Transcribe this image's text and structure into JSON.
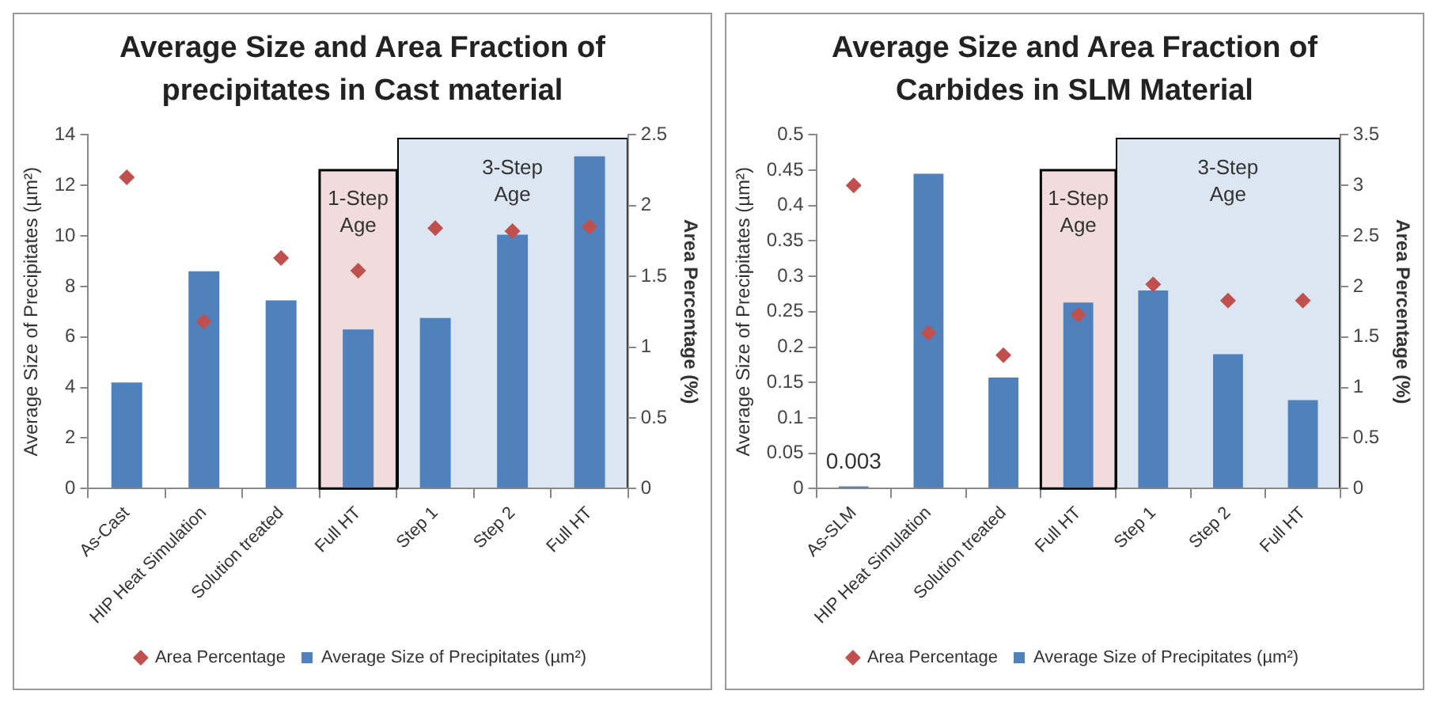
{
  "chart_data": [
    {
      "type": "bar",
      "title": "Average Size and Area Fraction of precipitates in Cast material",
      "ylabel": "Average Size of Precipitates (µm²)",
      "y2label": "Area Percentage (%)",
      "categories": [
        "As-Cast",
        "HIP Heat Simulation",
        "Solution treated",
        "Full HT",
        "Step 1",
        "Step 2",
        "Full HT"
      ],
      "series": [
        {
          "name": "Average Size of Precipitates (µm²)",
          "type": "bar",
          "color": "#4f81bd",
          "values": [
            4.2,
            8.6,
            7.45,
            6.3,
            6.75,
            10.05,
            13.15
          ]
        },
        {
          "name": "Area Percentage",
          "type": "scatter",
          "axis": "y2",
          "marker": "diamond",
          "color": "#c0504d",
          "values": [
            2.2,
            1.18,
            1.63,
            1.54,
            1.84,
            1.82,
            1.85
          ]
        }
      ],
      "ylim": [
        0,
        14
      ],
      "yticks": [
        0,
        2,
        4,
        6,
        8,
        10,
        12,
        14
      ],
      "y2lim": [
        0,
        2.5
      ],
      "y2ticks": [
        0,
        0.5,
        1,
        1.5,
        2,
        2.5
      ],
      "grid": false,
      "legend": "bottom",
      "bands": [
        {
          "axis": "x",
          "from": "Full HT",
          "to": "Full HT",
          "label": "1-Step Age",
          "color": "#f2dcdb"
        }
      ],
      "annotations": [
        "3-Step Age"
      ]
    },
    {
      "type": "bar",
      "title": "Average Size and Area Fraction of Carbides in SLM Material",
      "ylabel": "Average Size of Precipitates (µm²)",
      "y2label": "Area Percentage (%)",
      "categories": [
        "As-SLM",
        "HIP Heat Simulation",
        "Solution treated",
        "Full HT",
        "Step 1",
        "Step 2",
        "Full HT"
      ],
      "series": [
        {
          "name": "Average Size of Precipitates (µm²)",
          "type": "bar",
          "color": "#4f81bd",
          "values": [
            0.003,
            0.445,
            0.157,
            0.263,
            0.28,
            0.19,
            0.125
          ],
          "value_labels": [
            "0.003",
            null,
            null,
            null,
            null,
            null,
            null
          ]
        },
        {
          "name": "Area Percentage",
          "type": "scatter",
          "axis": "y2",
          "marker": "diamond",
          "color": "#c0504d",
          "values": [
            3.0,
            1.54,
            1.32,
            1.72,
            2.02,
            1.86,
            1.86
          ]
        }
      ],
      "ylim": [
        0,
        0.5
      ],
      "yticks": [
        0,
        0.05,
        0.1,
        0.15,
        0.2,
        0.25,
        0.3,
        0.35,
        0.4,
        0.45,
        0.5
      ],
      "y2lim": [
        0,
        3.5
      ],
      "y2ticks": [
        0,
        0.5,
        1,
        1.5,
        2,
        2.5,
        3,
        3.5
      ],
      "grid": false,
      "legend": "bottom",
      "bands": [
        {
          "axis": "x",
          "from": "Full HT",
          "to": "Full HT",
          "label": "1-Step Age",
          "color": "#f2dcdb"
        }
      ],
      "annotations": [
        "3-Step Age"
      ]
    }
  ]
}
